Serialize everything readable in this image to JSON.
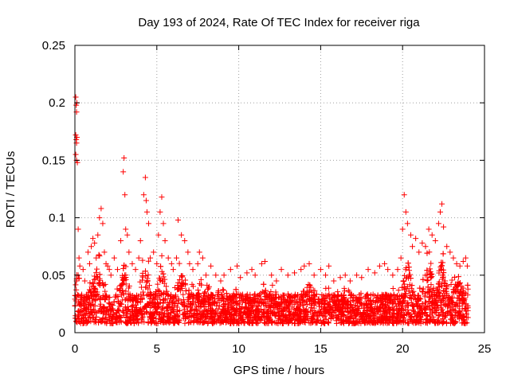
{
  "chart_data": {
    "type": "scatter",
    "title": "Day 193 of 2024, Rate Of TEC Index for receiver riga",
    "xlabel": "GPS time / hours",
    "ylabel": "ROTI / TECUs",
    "xlim": [
      0,
      25
    ],
    "ylim": [
      0,
      0.25
    ],
    "xticks": [
      0,
      5,
      10,
      15,
      20,
      25
    ],
    "xtick_labels": [
      "0",
      "5",
      "10",
      "15",
      "20",
      "25"
    ],
    "yticks": [
      0,
      0.05,
      0.1,
      0.15,
      0.2,
      0.25
    ],
    "ytick_labels": [
      "0",
      "0.05",
      "0.1",
      "0.15",
      "0.2",
      "0.25"
    ],
    "grid": true,
    "marker": "plus",
    "series": [
      {
        "color": "#ff0000",
        "points": [
          [
            0.05,
            0.205
          ],
          [
            0.08,
            0.198
          ],
          [
            0.1,
            0.192
          ],
          [
            0.12,
            0.2
          ],
          [
            0.05,
            0.172
          ],
          [
            0.08,
            0.168
          ],
          [
            0.1,
            0.165
          ],
          [
            0.12,
            0.17
          ],
          [
            0.05,
            0.155
          ],
          [
            0.1,
            0.15
          ],
          [
            0.15,
            0.148
          ],
          [
            0.2,
            0.09
          ],
          [
            0.25,
            0.065
          ],
          [
            0.3,
            0.058
          ],
          [
            0.1,
            0.045
          ],
          [
            0.2,
            0.05
          ],
          [
            0.5,
            0.055
          ],
          [
            0.6,
            0.045
          ],
          [
            0.8,
            0.07
          ],
          [
            0.9,
            0.06
          ],
          [
            1.0,
            0.075
          ],
          [
            1.1,
            0.082
          ],
          [
            1.2,
            0.078
          ],
          [
            1.3,
            0.065
          ],
          [
            1.4,
            0.085
          ],
          [
            1.5,
            0.1
          ],
          [
            1.6,
            0.108
          ],
          [
            1.7,
            0.095
          ],
          [
            1.8,
            0.07
          ],
          [
            1.9,
            0.06
          ],
          [
            2.0,
            0.058
          ],
          [
            2.1,
            0.055
          ],
          [
            2.2,
            0.05
          ],
          [
            2.4,
            0.065
          ],
          [
            2.6,
            0.055
          ],
          [
            2.8,
            0.08
          ],
          [
            2.95,
            0.14
          ],
          [
            3.0,
            0.152
          ],
          [
            3.05,
            0.12
          ],
          [
            3.1,
            0.09
          ],
          [
            3.2,
            0.085
          ],
          [
            3.3,
            0.07
          ],
          [
            3.5,
            0.06
          ],
          [
            3.7,
            0.055
          ],
          [
            3.9,
            0.065
          ],
          [
            4.0,
            0.08
          ],
          [
            4.2,
            0.12
          ],
          [
            4.3,
            0.135
          ],
          [
            4.35,
            0.115
          ],
          [
            4.4,
            0.105
          ],
          [
            4.5,
            0.095
          ],
          [
            4.6,
            0.065
          ],
          [
            4.8,
            0.07
          ],
          [
            5.0,
            0.06
          ],
          [
            5.1,
            0.085
          ],
          [
            5.2,
            0.105
          ],
          [
            5.3,
            0.118
          ],
          [
            5.4,
            0.095
          ],
          [
            5.5,
            0.08
          ],
          [
            5.7,
            0.065
          ],
          [
            5.9,
            0.06
          ],
          [
            6.0,
            0.055
          ],
          [
            6.2,
            0.065
          ],
          [
            6.3,
            0.098
          ],
          [
            6.5,
            0.085
          ],
          [
            6.7,
            0.08
          ],
          [
            6.9,
            0.07
          ],
          [
            7.0,
            0.06
          ],
          [
            7.2,
            0.055
          ],
          [
            7.5,
            0.06
          ],
          [
            7.6,
            0.07
          ],
          [
            7.8,
            0.065
          ],
          [
            8.0,
            0.05
          ],
          [
            8.3,
            0.058
          ],
          [
            8.6,
            0.05
          ],
          [
            8.9,
            0.045
          ],
          [
            9.1,
            0.05
          ],
          [
            9.5,
            0.055
          ],
          [
            9.9,
            0.058
          ],
          [
            10.1,
            0.048
          ],
          [
            10.5,
            0.052
          ],
          [
            10.8,
            0.055
          ],
          [
            11.0,
            0.05
          ],
          [
            11.4,
            0.06
          ],
          [
            11.6,
            0.062
          ],
          [
            12.0,
            0.05
          ],
          [
            12.3,
            0.045
          ],
          [
            12.6,
            0.055
          ],
          [
            13.0,
            0.05
          ],
          [
            13.4,
            0.052
          ],
          [
            13.8,
            0.055
          ],
          [
            14.0,
            0.058
          ],
          [
            14.3,
            0.06
          ],
          [
            14.6,
            0.05
          ],
          [
            15.0,
            0.055
          ],
          [
            15.3,
            0.05
          ],
          [
            15.5,
            0.058
          ],
          [
            15.8,
            0.045
          ],
          [
            16.2,
            0.048
          ],
          [
            16.5,
            0.05
          ],
          [
            16.8,
            0.045
          ],
          [
            17.2,
            0.05
          ],
          [
            17.5,
            0.048
          ],
          [
            17.9,
            0.055
          ],
          [
            18.3,
            0.052
          ],
          [
            18.6,
            0.058
          ],
          [
            18.9,
            0.06
          ],
          [
            19.1,
            0.055
          ],
          [
            19.4,
            0.05
          ],
          [
            19.7,
            0.055
          ],
          [
            19.9,
            0.065
          ],
          [
            20.0,
            0.09
          ],
          [
            20.1,
            0.12
          ],
          [
            20.2,
            0.105
          ],
          [
            20.3,
            0.095
          ],
          [
            20.5,
            0.085
          ],
          [
            20.6,
            0.075
          ],
          [
            20.8,
            0.082
          ],
          [
            21.0,
            0.07
          ],
          [
            21.2,
            0.078
          ],
          [
            21.4,
            0.075
          ],
          [
            21.6,
            0.09
          ],
          [
            21.8,
            0.085
          ],
          [
            22.0,
            0.08
          ],
          [
            22.2,
            0.095
          ],
          [
            22.3,
            0.105
          ],
          [
            22.4,
            0.112
          ],
          [
            22.5,
            0.092
          ],
          [
            22.7,
            0.075
          ],
          [
            22.9,
            0.07
          ],
          [
            23.1,
            0.065
          ],
          [
            23.3,
            0.06
          ],
          [
            23.5,
            0.058
          ],
          [
            23.7,
            0.062
          ],
          [
            23.85,
            0.065
          ],
          [
            23.95,
            0.058
          ]
        ]
      }
    ],
    "cloud": {
      "base_low": 0.008,
      "base_high": 0.042,
      "samples": 3600,
      "x_range": [
        0,
        24
      ],
      "spikes": [
        {
          "x": 0.15,
          "width": 0.15,
          "top": 0.08
        },
        {
          "x": 1.4,
          "width": 0.6,
          "top": 0.075
        },
        {
          "x": 3.0,
          "width": 0.3,
          "top": 0.08
        },
        {
          "x": 4.3,
          "width": 0.35,
          "top": 0.09
        },
        {
          "x": 5.3,
          "width": 0.35,
          "top": 0.085
        },
        {
          "x": 6.5,
          "width": 0.4,
          "top": 0.07
        },
        {
          "x": 7.7,
          "width": 0.3,
          "top": 0.06
        },
        {
          "x": 11.5,
          "width": 0.3,
          "top": 0.055
        },
        {
          "x": 14.3,
          "width": 0.5,
          "top": 0.055
        },
        {
          "x": 20.3,
          "width": 0.4,
          "top": 0.085
        },
        {
          "x": 21.6,
          "width": 0.5,
          "top": 0.08
        },
        {
          "x": 22.4,
          "width": 0.4,
          "top": 0.09
        },
        {
          "x": 23.4,
          "width": 0.5,
          "top": 0.06
        }
      ]
    }
  }
}
